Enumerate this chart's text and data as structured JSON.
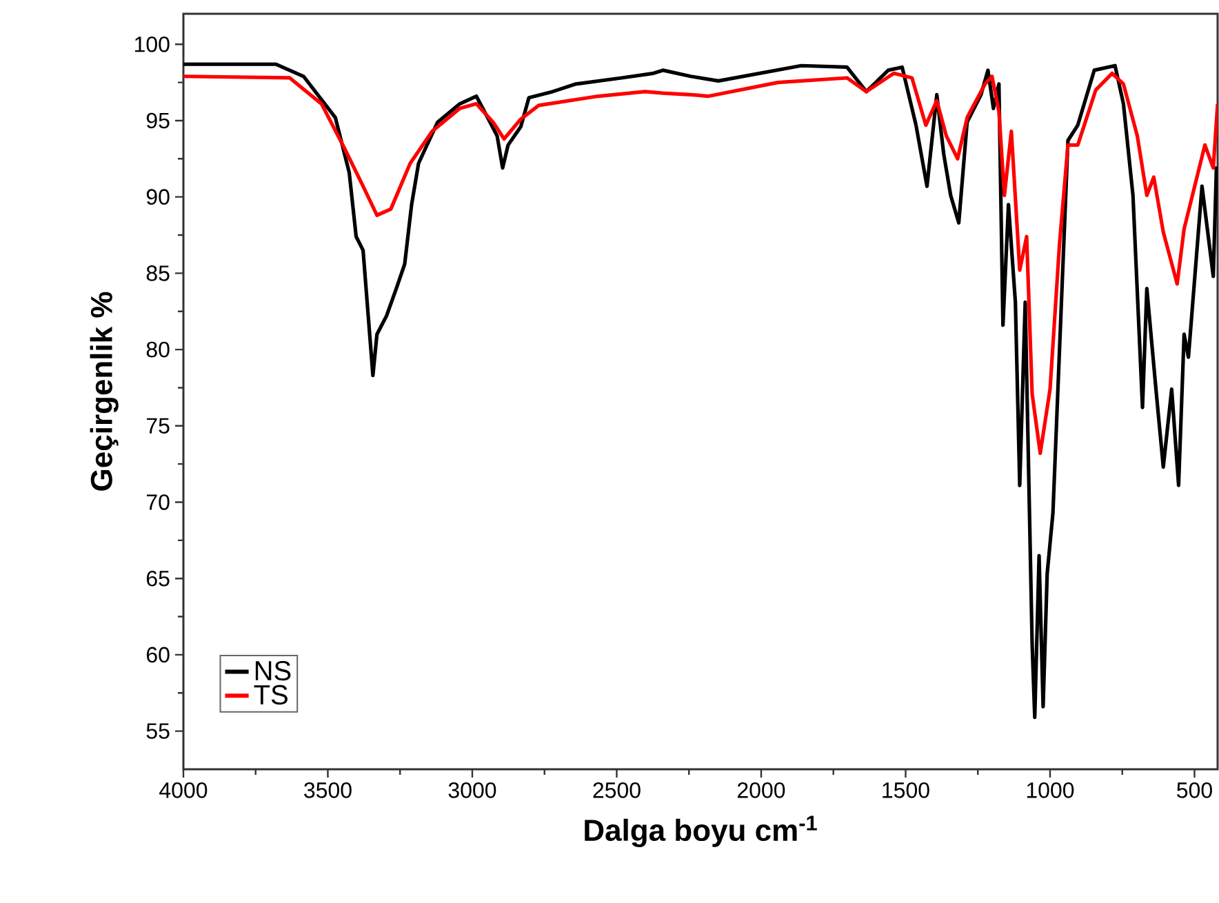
{
  "chart_data": {
    "type": "line",
    "xlabel": "Dalga boyu cm$^{-1}$",
    "ylabel": "Geçirgenlik %",
    "xlim": [
      4000,
      420
    ],
    "ylim": [
      52.5,
      102
    ],
    "xticks": [
      4000,
      3500,
      3000,
      2500,
      2000,
      1500,
      1000,
      500
    ],
    "yticks": [
      55,
      60,
      65,
      70,
      75,
      80,
      85,
      90,
      95,
      100
    ],
    "legend": "bottom left",
    "grid": false,
    "marker": "none",
    "line_style": "solid",
    "series": [
      {
        "name": "NS",
        "color": "#000000",
        "x": [
          4000,
          3680,
          3584,
          3474,
          3426,
          3402,
          3378,
          3344,
          3330,
          3297,
          3263,
          3234,
          3210,
          3186,
          3120,
          3043,
          2986,
          2947,
          2914,
          2895,
          2876,
          2832,
          2804,
          2722,
          2641,
          2483,
          2373,
          2340,
          2244,
          2148,
          1861,
          1703,
          1636,
          1560,
          1512,
          1464,
          1426,
          1392,
          1368,
          1344,
          1316,
          1287,
          1239,
          1215,
          1196,
          1177,
          1163,
          1144,
          1120,
          1105,
          1086,
          1062,
          1053,
          1038,
          1024,
          1010,
          990,
          976,
          938,
          904,
          847,
          775,
          746,
          713,
          680,
          665,
          632,
          608,
          579,
          555,
          536,
          521,
          474,
          435,
          424
        ],
        "values": [
          98.7,
          98.7,
          97.9,
          95.2,
          91.6,
          87.4,
          86.5,
          78.3,
          81.0,
          82.2,
          84.0,
          85.6,
          89.5,
          92.2,
          94.9,
          96.1,
          96.6,
          95.2,
          94.0,
          91.9,
          93.4,
          94.6,
          96.5,
          96.9,
          97.4,
          97.8,
          98.1,
          98.3,
          97.9,
          97.6,
          98.6,
          98.5,
          96.9,
          98.3,
          98.5,
          94.7,
          90.7,
          96.7,
          92.8,
          90.1,
          88.3,
          94.9,
          96.7,
          98.3,
          95.8,
          97.4,
          81.6,
          89.5,
          83.1,
          71.1,
          83.1,
          60.7,
          55.9,
          66.5,
          56.6,
          65.3,
          69.3,
          75.9,
          93.7,
          94.7,
          98.3,
          98.6,
          96.1,
          90.1,
          76.2,
          84.0,
          77.1,
          72.3,
          77.4,
          71.1,
          81.0,
          79.5,
          90.7,
          84.8,
          92.0
        ]
      },
      {
        "name": "TS",
        "color": "#ff0000",
        "x": [
          4000,
          3632,
          3522,
          3440,
          3378,
          3330,
          3282,
          3215,
          3139,
          3043,
          2986,
          2928,
          2890,
          2832,
          2770,
          2564,
          2402,
          2340,
          2244,
          2182,
          1942,
          1703,
          1636,
          1541,
          1478,
          1430,
          1392,
          1359,
          1320,
          1287,
          1225,
          1201,
          1177,
          1158,
          1134,
          1105,
          1081,
          1062,
          1034,
          1000,
          967,
          938,
          904,
          842,
          785,
          746,
          698,
          665,
          641,
          608,
          560,
          536,
          464,
          435,
          420
        ],
        "values": [
          97.9,
          97.8,
          96.1,
          93.1,
          90.7,
          88.8,
          89.2,
          92.2,
          94.3,
          95.8,
          96.1,
          94.9,
          93.8,
          95.1,
          96.0,
          96.6,
          96.9,
          96.8,
          96.7,
          96.6,
          97.5,
          97.8,
          96.9,
          98.1,
          97.8,
          94.7,
          96.3,
          94.0,
          92.5,
          95.2,
          97.4,
          97.9,
          95.6,
          90.1,
          94.3,
          85.2,
          87.4,
          77.1,
          73.2,
          77.4,
          87.0,
          93.4,
          93.4,
          97.0,
          98.1,
          97.4,
          94.0,
          90.1,
          91.3,
          87.7,
          84.3,
          87.9,
          93.4,
          91.9,
          96.1
        ]
      }
    ]
  }
}
